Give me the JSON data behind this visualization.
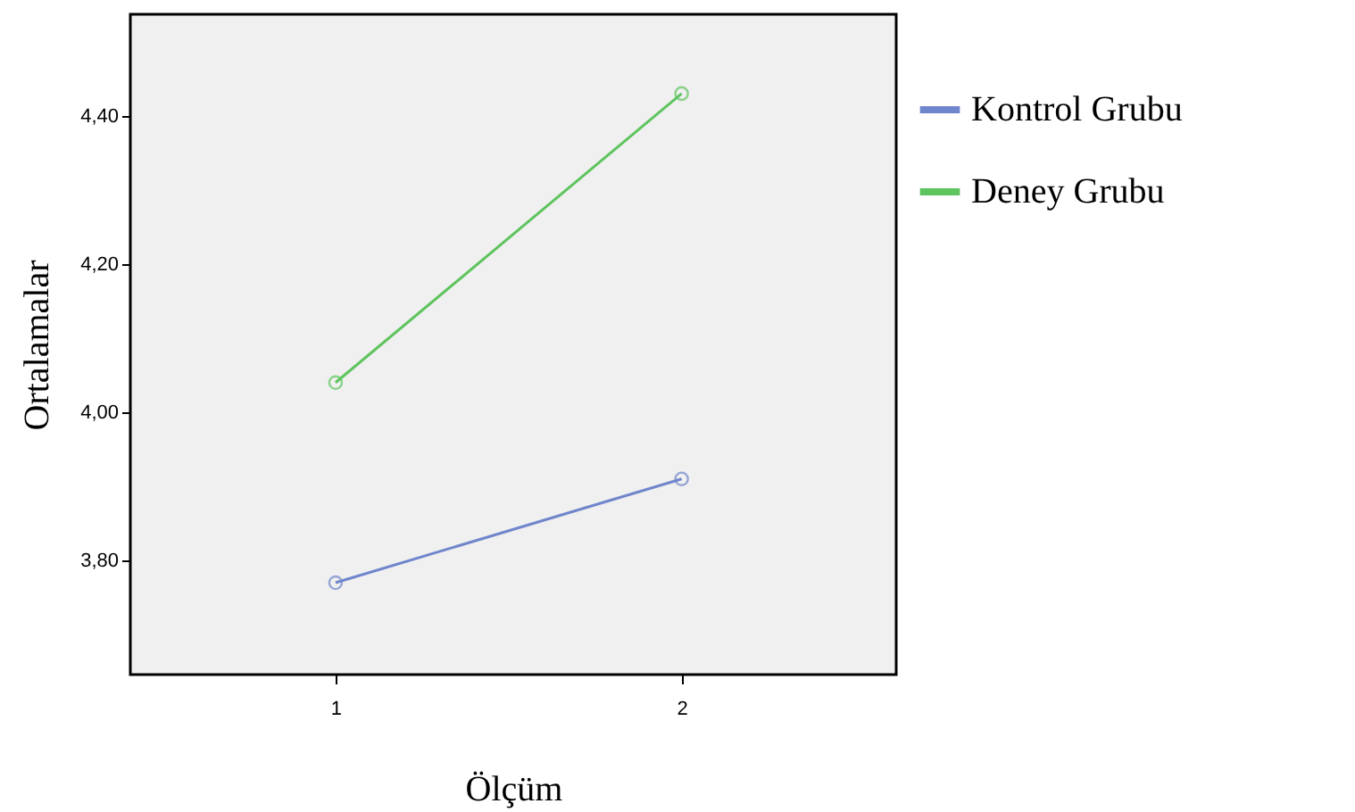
{
  "chart_data": {
    "type": "line",
    "xlabel": "Ölçüm",
    "ylabel": "Ortalamalar",
    "categories": [
      "1",
      "2"
    ],
    "series": [
      {
        "name": "Kontrol Grubu",
        "color": "#7086cc",
        "values": [
          3.77,
          3.91
        ]
      },
      {
        "name": "Deney Grubu",
        "color": "#5ec45e",
        "values": [
          4.04,
          4.43
        ]
      }
    ],
    "ylim": [
      3.646,
      4.537
    ],
    "yticks": [
      {
        "value": 3.8,
        "label": "3,80"
      },
      {
        "value": 4.0,
        "label": "4,00"
      },
      {
        "value": 4.2,
        "label": "4,20"
      },
      {
        "value": 4.4,
        "label": "4,40"
      }
    ],
    "grid": false,
    "legend": "right",
    "marker": "circle",
    "line_style": "solid"
  }
}
